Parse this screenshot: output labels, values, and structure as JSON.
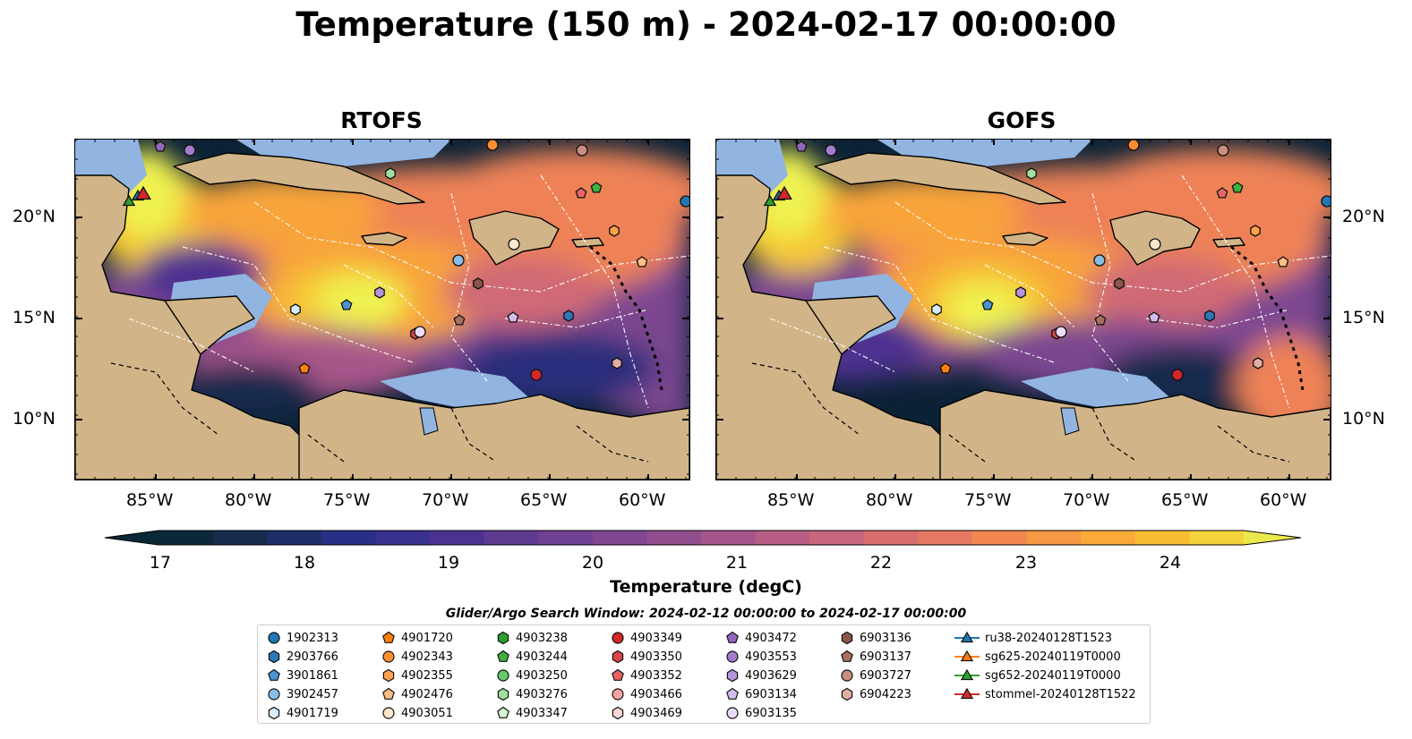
{
  "title": "Temperature (150 m) - 2024-02-17 00:00:00",
  "panels": [
    {
      "title": "RTOFS"
    },
    {
      "title": "GOFS"
    }
  ],
  "axes": {
    "lat_ticks": [
      "20°N",
      "15°N",
      "10°N"
    ],
    "lon_ticks": [
      "85°W",
      "80°W",
      "75°W",
      "70°W",
      "65°W",
      "60°W"
    ]
  },
  "colorbar": {
    "label": "Temperature (degC)",
    "ticks": [
      "17",
      "18",
      "19",
      "20",
      "21",
      "22",
      "23",
      "24"
    ],
    "range": [
      17,
      24.5
    ],
    "colors": [
      "#0a2838",
      "#172b4d",
      "#1d2f66",
      "#272f86",
      "#39318f",
      "#4c3290",
      "#5e3a91",
      "#6f4192",
      "#814791",
      "#934e8f",
      "#a5558b",
      "#b75d84",
      "#c9657c",
      "#d86e70",
      "#e67961",
      "#f18651",
      "#f79842",
      "#f9aa38",
      "#f7bd35",
      "#f3d23c",
      "#ebe84c"
    ],
    "ocean_scale": [
      "#172b4d",
      "#2c2f7c",
      "#4e3290",
      "#7b4690",
      "#a7568a",
      "#d06a74",
      "#ee8257",
      "#f8a43a",
      "#f6c734",
      "#eff251"
    ]
  },
  "map": {
    "land_color": "#d1b589",
    "shelf_color": "#91b4e0",
    "deep_color": "#0b2236"
  },
  "legend": {
    "title": "Glider/Argo Search Window: 2024-02-12 00:00:00 to 2024-02-17 00:00:00",
    "columns": [
      [
        {
          "label": "1902313",
          "marker": "circle",
          "color": "#1f77b4"
        },
        {
          "label": "2903766",
          "marker": "hexagon",
          "color": "#2e78b8"
        },
        {
          "label": "3901861",
          "marker": "pentagon",
          "color": "#4a93cf"
        },
        {
          "label": "3902457",
          "marker": "circle",
          "color": "#88bde6"
        },
        {
          "label": "4901719",
          "marker": "hexagon",
          "color": "#d8ebf8"
        }
      ],
      [
        {
          "label": "4901720",
          "marker": "pentagon",
          "color": "#ff7f0e"
        },
        {
          "label": "4902343",
          "marker": "circle",
          "color": "#ff8f2e"
        },
        {
          "label": "4902355",
          "marker": "hexagon",
          "color": "#ffa24e"
        },
        {
          "label": "4902476",
          "marker": "pentagon",
          "color": "#ffbf86"
        },
        {
          "label": "4903051",
          "marker": "circle",
          "color": "#ffe7cc"
        }
      ],
      [
        {
          "label": "4903238",
          "marker": "hexagon",
          "color": "#2ca02c"
        },
        {
          "label": "4903244",
          "marker": "pentagon",
          "color": "#3fb13f"
        },
        {
          "label": "4903250",
          "marker": "circle",
          "color": "#67c967"
        },
        {
          "label": "4903276",
          "marker": "hexagon",
          "color": "#9ee09e"
        },
        {
          "label": "4903347",
          "marker": "pentagon",
          "color": "#d4f4d4"
        }
      ],
      [
        {
          "label": "4903349",
          "marker": "circle",
          "color": "#d62728"
        },
        {
          "label": "4903350",
          "marker": "hexagon",
          "color": "#dd4445"
        },
        {
          "label": "4903352",
          "marker": "pentagon",
          "color": "#e86566"
        },
        {
          "label": "4903466",
          "marker": "circle",
          "color": "#f3a1a1"
        },
        {
          "label": "4903469",
          "marker": "hexagon",
          "color": "#fbd6d6"
        }
      ],
      [
        {
          "label": "4903472",
          "marker": "pentagon",
          "color": "#9467bd"
        },
        {
          "label": "4903553",
          "marker": "circle",
          "color": "#a47ccb"
        },
        {
          "label": "4903629",
          "marker": "hexagon",
          "color": "#b895da"
        },
        {
          "label": "6903134",
          "marker": "pentagon",
          "color": "#d4bdee"
        },
        {
          "label": "6903135",
          "marker": "circle",
          "color": "#ecdcfb"
        }
      ],
      [
        {
          "label": "6903136",
          "marker": "hexagon",
          "color": "#8c564b"
        },
        {
          "label": "6903137",
          "marker": "pentagon",
          "color": "#a8705f"
        },
        {
          "label": "6903727",
          "marker": "circle",
          "color": "#c98f80"
        },
        {
          "label": "6904223",
          "marker": "hexagon",
          "color": "#e5aea4"
        }
      ],
      [
        {
          "label": "ru38-20240128T1523",
          "marker": "triangle-line",
          "color": "#1f77b4"
        },
        {
          "label": "sg625-20240119T0000",
          "marker": "triangle-line",
          "color": "#ff7f0e"
        },
        {
          "label": "sg652-20240119T0000",
          "marker": "triangle-line",
          "color": "#2ca02c"
        },
        {
          "label": "stommel-20240128T1522",
          "marker": "triangle-line",
          "color": "#d62728"
        }
      ]
    ]
  }
}
